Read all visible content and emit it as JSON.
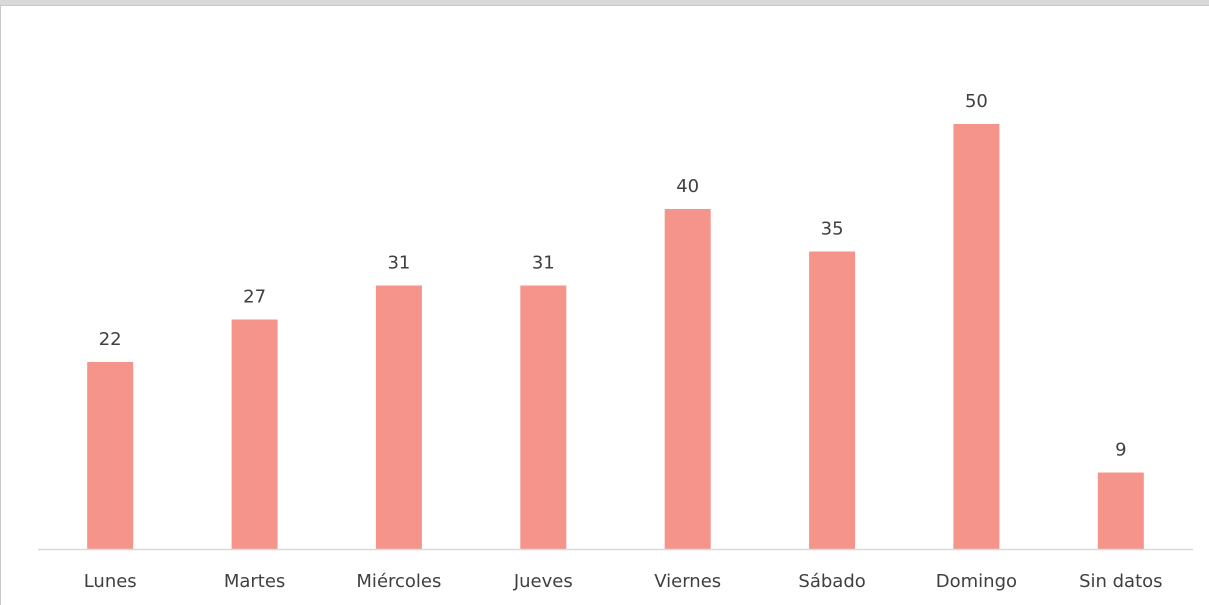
{
  "chart_data": {
    "type": "bar",
    "categories": [
      "Lunes",
      "Martes",
      "Miércoles",
      "Jueves",
      "Viernes",
      "Sábado",
      "Domingo",
      "Sin datos"
    ],
    "values": [
      22,
      27,
      31,
      31,
      40,
      35,
      50,
      9
    ],
    "data_labels": [
      "22",
      "27",
      "31",
      "31",
      "40",
      "35",
      "50",
      "9"
    ],
    "title": "",
    "xlabel": "",
    "ylabel": "",
    "ylim": [
      0,
      50
    ],
    "grid": false,
    "legend": "none",
    "bar_color": "#f4948a",
    "axis_color": "#d9d9d9",
    "label_color": "#404040"
  }
}
